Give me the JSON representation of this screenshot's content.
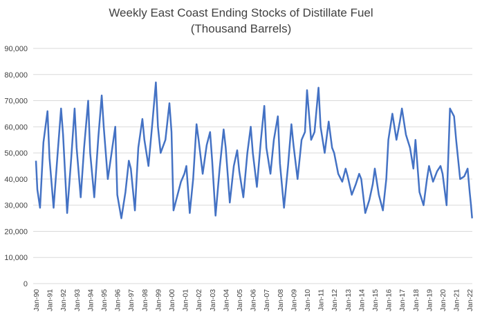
{
  "chart_data": {
    "type": "line",
    "title": [
      "Weekly East Coast Ending Stocks of Distillate Fuel",
      "(Thousand Barrels)"
    ],
    "xlabel": "",
    "ylabel": "",
    "ylim": [
      0,
      90000
    ],
    "y_ticks": [
      "0",
      "10,000",
      "20,000",
      "30,000",
      "40,000",
      "50,000",
      "60,000",
      "70,000",
      "80,000",
      "90,000"
    ],
    "x_ticks": [
      "Jan-90",
      "Jan-91",
      "Jan-92",
      "Jan-93",
      "Jan-94",
      "Jan-95",
      "Jan-96",
      "Jan-97",
      "Jan-98",
      "Jan-99",
      "Jan-00",
      "Jan-01",
      "Jan-02",
      "Jan-03",
      "Jan-04",
      "Jan-05",
      "Jan-06",
      "Jan-07",
      "Jan-08",
      "Jan-09",
      "Jan-10",
      "Jan-11",
      "Jan-12",
      "Jan-13",
      "Jan-14",
      "Jan-15",
      "Jan-16",
      "Jan-17",
      "Jan-18",
      "Jan-19",
      "Jan-20",
      "Jan-21",
      "Jan-22"
    ],
    "grid": true,
    "legend": "none",
    "line_color": "#4472c4",
    "series": [
      {
        "x": [
          1990.0,
          1990.1,
          1990.3,
          1990.55,
          1990.85,
          1991.0,
          1991.3,
          1991.6,
          1991.85,
          1992.0,
          1992.3,
          1992.6,
          1992.85,
          1993.0,
          1993.3,
          1993.55,
          1993.85,
          1994.0,
          1994.3,
          1994.6,
          1994.85,
          1995.0,
          1995.3,
          1995.55,
          1995.85,
          1996.0,
          1996.3,
          1996.6,
          1996.85,
          1997.0,
          1997.3,
          1997.55,
          1997.85,
          1998.0,
          1998.3,
          1998.6,
          1998.85,
          1999.0,
          1999.2,
          1999.55,
          1999.85,
          2000.0,
          2000.15,
          2000.4,
          2000.7,
          2000.95,
          2001.1,
          2001.35,
          2001.6,
          2001.85,
          2002.0,
          2002.3,
          2002.6,
          2002.85,
          2003.0,
          2003.25,
          2003.55,
          2003.85,
          2004.0,
          2004.3,
          2004.6,
          2004.85,
          2005.0,
          2005.3,
          2005.6,
          2005.85,
          2006.0,
          2006.3,
          2006.6,
          2006.85,
          2007.0,
          2007.3,
          2007.55,
          2007.85,
          2008.0,
          2008.3,
          2008.6,
          2008.85,
          2009.0,
          2009.3,
          2009.6,
          2009.85,
          2010.0,
          2010.3,
          2010.55,
          2010.85,
          2011.0,
          2011.3,
          2011.6,
          2011.85,
          2012.0,
          2012.3,
          2012.6,
          2012.85,
          2013.0,
          2013.3,
          2013.6,
          2013.85,
          2014.0,
          2014.3,
          2014.6,
          2014.85,
          2015.0,
          2015.3,
          2015.6,
          2015.85,
          2016.0,
          2016.3,
          2016.6,
          2016.85,
          2017.0,
          2017.3,
          2017.6,
          2017.85,
          2018.0,
          2018.3,
          2018.6,
          2018.85,
          2019.0,
          2019.3,
          2019.6,
          2019.85,
          2020.0,
          2020.3,
          2020.55,
          2020.85,
          2021.0,
          2021.3,
          2021.6,
          2021.85,
          2022.0,
          2022.1,
          2022.18
        ],
        "values": [
          47000,
          36000,
          29000,
          54000,
          66000,
          48000,
          29000,
          50000,
          67000,
          57000,
          27000,
          48000,
          67000,
          52000,
          33000,
          52000,
          70000,
          50000,
          33000,
          56000,
          72000,
          60000,
          40000,
          49000,
          60000,
          34000,
          25000,
          35000,
          47000,
          44000,
          28000,
          52000,
          63000,
          55000,
          45000,
          62000,
          77000,
          60000,
          50000,
          55000,
          69000,
          58000,
          28000,
          33000,
          39000,
          42000,
          45000,
          27000,
          40000,
          61000,
          55000,
          42000,
          53000,
          58000,
          47000,
          26000,
          44000,
          59000,
          52000,
          31000,
          45000,
          51000,
          43000,
          33000,
          50000,
          60000,
          50000,
          37000,
          55000,
          68000,
          52000,
          42000,
          55000,
          64000,
          46000,
          29000,
          45000,
          61000,
          53000,
          40000,
          55000,
          58000,
          74000,
          55000,
          58000,
          75000,
          60000,
          50000,
          62000,
          52000,
          50000,
          42000,
          39000,
          44000,
          41000,
          34000,
          38000,
          42000,
          40000,
          27000,
          32000,
          38000,
          44000,
          34000,
          28000,
          40000,
          55000,
          65000,
          55000,
          62000,
          67000,
          57000,
          52000,
          44000,
          55000,
          35000,
          30000,
          40000,
          45000,
          39000,
          43000,
          45000,
          42000,
          30000,
          67000,
          64000,
          55000,
          40000,
          41000,
          44000,
          35000,
          30000,
          25000
        ]
      }
    ]
  }
}
